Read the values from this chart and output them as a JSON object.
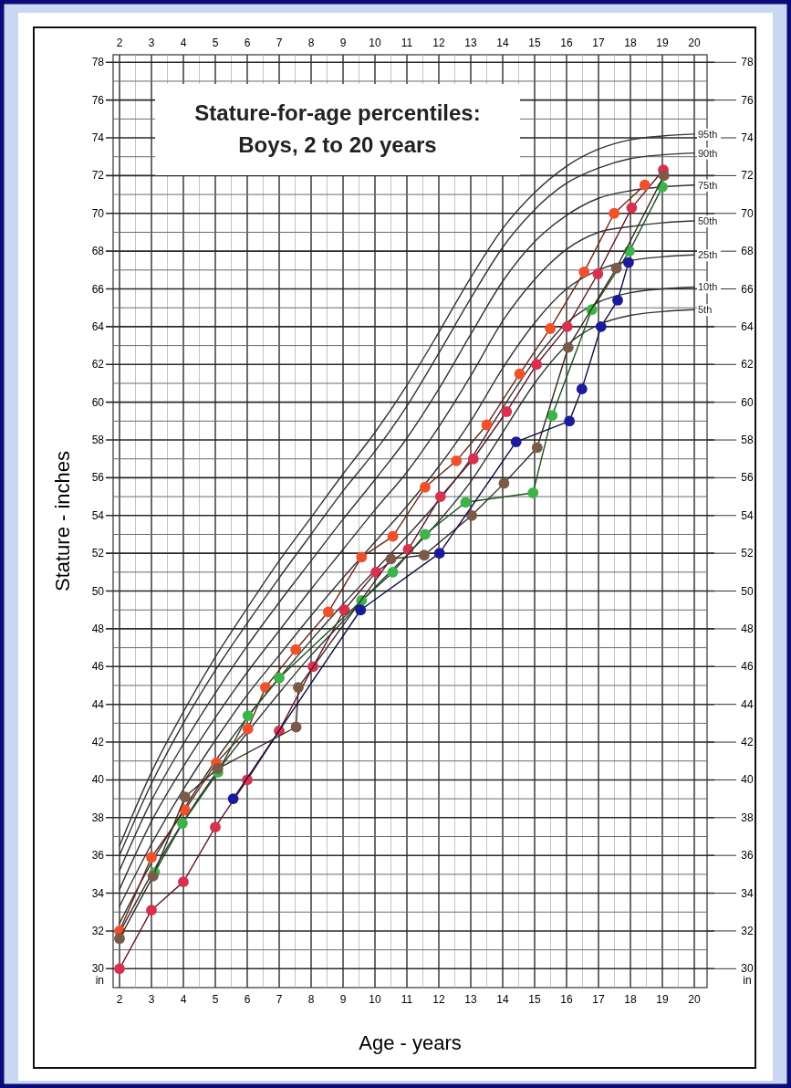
{
  "chart_data": {
    "type": "line",
    "title": "Stature-for-age percentiles:",
    "subtitle": "Boys, 2 to 20 years",
    "xlabel": "Age - years",
    "ylabel": "Stature - inches",
    "xlim": [
      1.8,
      20.4
    ],
    "xticks": [
      2,
      3,
      4,
      5,
      6,
      7,
      8,
      9,
      10,
      11,
      12,
      13,
      14,
      15,
      16,
      17,
      18,
      19,
      20
    ],
    "x2lim": [
      1.8,
      20.4
    ],
    "x2ticks": [
      2,
      3,
      4,
      5,
      6,
      7,
      8,
      9,
      10,
      11,
      12,
      13,
      14,
      15,
      16,
      17,
      18,
      19,
      20
    ],
    "ylim": [
      29,
      78.4
    ],
    "yticks": [
      {
        "value": 29.4,
        "label": "in"
      },
      30,
      32,
      34,
      36,
      38,
      40,
      42,
      44,
      46,
      48,
      50,
      52,
      54,
      56,
      58,
      60,
      62,
      64,
      66,
      68,
      70,
      72,
      74,
      76,
      78
    ],
    "y2lim": [
      29,
      78.4
    ],
    "y2ticks": [
      {
        "value": 29.4,
        "label": "in"
      },
      30,
      32,
      34,
      36,
      38,
      40,
      42,
      44,
      46,
      48,
      50,
      52,
      54,
      56,
      58,
      60,
      62,
      64,
      66,
      68,
      70,
      72,
      74,
      76,
      78
    ],
    "grid": true,
    "legend": "right",
    "x": [
      2,
      3,
      4,
      5,
      6,
      7,
      8,
      9,
      10,
      11,
      12,
      13,
      14,
      15,
      16,
      17,
      18,
      19,
      20
    ],
    "series": [
      {
        "name": "95th",
        "color": "#333333",
        "marker": "none",
        "values": [
          36.5,
          40.4,
          43.6,
          46.5,
          49.1,
          51.6,
          53.9,
          56.2,
          58.4,
          60.9,
          63.7,
          66.6,
          69.2,
          71.1,
          72.5,
          73.4,
          73.9,
          74.1,
          74.2
        ]
      },
      {
        "name": "90th",
        "color": "#333333",
        "marker": "none",
        "values": [
          36.0,
          39.8,
          43.0,
          45.8,
          48.3,
          50.7,
          53.0,
          55.3,
          57.4,
          59.8,
          62.6,
          65.5,
          68.2,
          70.2,
          71.6,
          72.4,
          72.9,
          73.1,
          73.2
        ]
      },
      {
        "name": "75th",
        "color": "#333333",
        "marker": "none",
        "values": [
          35.2,
          38.9,
          41.9,
          44.6,
          47.1,
          49.4,
          51.6,
          53.8,
          55.9,
          58.1,
          60.7,
          63.6,
          66.4,
          68.5,
          69.9,
          70.8,
          71.2,
          71.4,
          71.5
        ]
      },
      {
        "name": "50th",
        "color": "#333333",
        "marker": "none",
        "values": [
          34.2,
          37.8,
          40.7,
          43.3,
          45.7,
          47.9,
          50.1,
          52.2,
          54.3,
          56.3,
          58.7,
          61.4,
          64.3,
          66.5,
          68.1,
          69.0,
          69.3,
          69.5,
          69.6
        ]
      },
      {
        "name": "25th",
        "color": "#333333",
        "marker": "none",
        "values": [
          33.3,
          36.6,
          39.5,
          42.1,
          44.5,
          46.6,
          48.7,
          50.7,
          52.6,
          54.5,
          56.6,
          59.0,
          61.8,
          64.2,
          66.0,
          67.0,
          67.5,
          67.7,
          67.8
        ]
      },
      {
        "name": "10th",
        "color": "#333333",
        "marker": "none",
        "values": [
          32.4,
          35.6,
          38.4,
          41.0,
          43.3,
          45.4,
          47.4,
          49.3,
          51.1,
          52.9,
          54.8,
          57.0,
          59.7,
          62.2,
          64.2,
          65.3,
          65.8,
          66.0,
          66.1
        ]
      },
      {
        "name": "5th",
        "color": "#333333",
        "marker": "none",
        "values": [
          31.9,
          35.0,
          37.8,
          40.3,
          42.5,
          44.6,
          46.6,
          48.4,
          50.2,
          51.9,
          53.7,
          55.8,
          58.4,
          61.0,
          63.0,
          64.1,
          64.6,
          64.8,
          64.9
        ]
      },
      {
        "color": "#d9304f",
        "marker": "circle",
        "x": [
          2,
          3,
          4,
          5,
          6,
          7,
          8.06,
          9.04,
          10.03,
          11.04,
          12.05,
          13.08,
          14.12,
          15.06,
          16.02,
          16.98,
          18.04,
          19.03
        ],
        "values": [
          30.0,
          33.1,
          34.6,
          37.5,
          40.0,
          42.6,
          46.0,
          49.0,
          51.0,
          52.2,
          55.0,
          57.0,
          59.5,
          62.0,
          64.0,
          66.8,
          70.3,
          72.3
        ]
      },
      {
        "color": "#f0502a",
        "marker": "circle",
        "x": [
          2,
          3,
          4.05,
          5.03,
          6.02,
          6.57,
          7.52,
          8.54,
          9.58,
          10.56,
          11.57,
          12.55,
          13.5,
          14.53,
          15.49,
          16.55,
          17.49,
          18.45
        ],
        "values": [
          32.0,
          35.9,
          38.4,
          40.9,
          42.7,
          44.9,
          46.9,
          48.9,
          51.8,
          52.9,
          55.5,
          56.9,
          58.8,
          61.5,
          63.9,
          66.9,
          70.0,
          71.5
        ]
      },
      {
        "color": "#3cb44a",
        "marker": "circle",
        "x": [
          3.1,
          3.97,
          5.08,
          6.02,
          7.0,
          9.58,
          10.56,
          11.57,
          12.84,
          14.95,
          15.55,
          16.79,
          17.97,
          19.0
        ],
        "values": [
          35.1,
          37.7,
          40.4,
          43.4,
          45.4,
          49.5,
          51.0,
          53.0,
          54.7,
          55.2,
          59.3,
          64.9,
          68.0,
          71.4
        ]
      },
      {
        "color": "#7a5a48",
        "marker": "circle",
        "x": [
          2,
          3.05,
          4.05,
          5.08,
          7.53,
          7.6,
          10.5,
          11.54,
          13.03,
          14.04,
          15.08,
          16.05,
          17.56,
          19.05
        ],
        "values": [
          31.6,
          34.9,
          39.1,
          40.6,
          42.8,
          44.9,
          51.7,
          51.9,
          54.0,
          55.7,
          57.6,
          62.9,
          67.1,
          72.0
        ]
      },
      {
        "color": "#1a1a9a",
        "marker": "circle",
        "x": [
          5.56,
          9.55,
          12.02,
          14.42,
          16.09,
          16.48,
          17.08,
          17.6,
          17.94
        ],
        "values": [
          39.0,
          49.0,
          52.0,
          57.9,
          59.0,
          60.7,
          64.0,
          65.4,
          67.4
        ]
      }
    ]
  }
}
